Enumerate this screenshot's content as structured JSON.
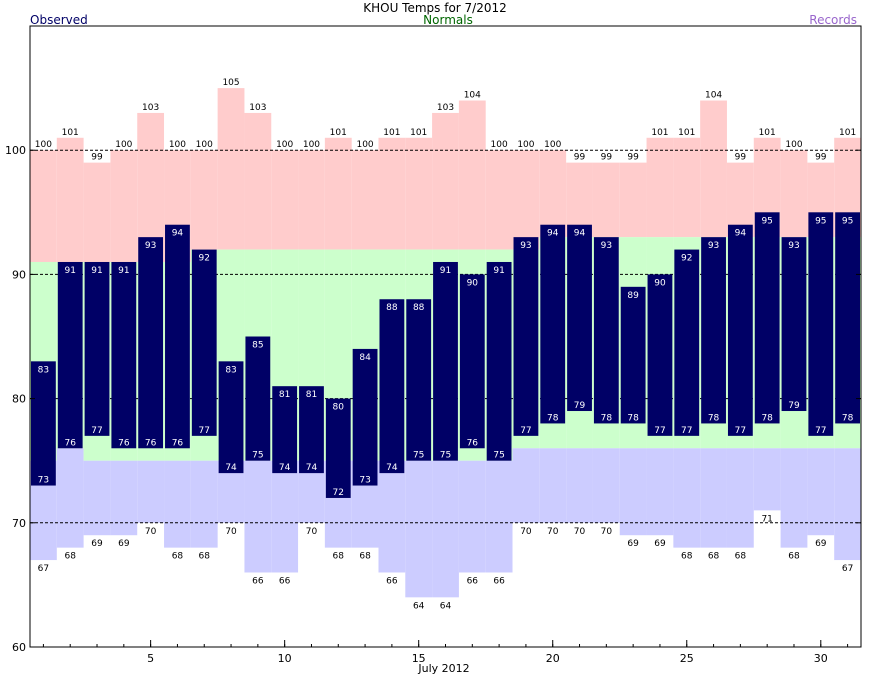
{
  "title": "KHOU Temps for 7/2012",
  "legend": {
    "observed": "Observed",
    "normals": "Normals",
    "records": "Records"
  },
  "colors": {
    "observed_bar": "#000066",
    "record_high_fill": "#ffcccc",
    "normal_fill": "#ccffcc",
    "record_low_fill": "#ccccff",
    "observed_text": "#000066",
    "normals_text": "#006600",
    "records_text": "#9966cc"
  },
  "chart_data": {
    "type": "bar",
    "title": "KHOU Temps for 7/2012",
    "xlabel": "July 2012",
    "ylabel": "",
    "xlim": [
      0.5,
      31.5
    ],
    "ylim": [
      60,
      110
    ],
    "x_ticks": [
      5,
      10,
      15,
      20,
      25,
      30
    ],
    "y_ticks": [
      60,
      70,
      80,
      90,
      100
    ],
    "dashed_gridlines": [
      70,
      80,
      90,
      100
    ],
    "days": [
      1,
      2,
      3,
      4,
      5,
      6,
      7,
      8,
      9,
      10,
      11,
      12,
      13,
      14,
      15,
      16,
      17,
      18,
      19,
      20,
      21,
      22,
      23,
      24,
      25,
      26,
      27,
      28,
      29,
      30,
      31
    ],
    "series": [
      {
        "name": "Observed",
        "kind": "high",
        "values": [
          83,
          91,
          91,
          91,
          93,
          94,
          92,
          83,
          85,
          81,
          81,
          80,
          84,
          88,
          88,
          91,
          90,
          91,
          93,
          94,
          94,
          93,
          89,
          90,
          92,
          93,
          94,
          95,
          93,
          95,
          95
        ]
      },
      {
        "name": "Observed",
        "kind": "low",
        "values": [
          73,
          76,
          77,
          76,
          76,
          76,
          77,
          74,
          75,
          74,
          74,
          72,
          73,
          74,
          75,
          75,
          76,
          75,
          77,
          78,
          79,
          78,
          78,
          77,
          77,
          78,
          77,
          78,
          79,
          77,
          78
        ]
      },
      {
        "name": "Normals",
        "kind": "high",
        "values": [
          91,
          91,
          91,
          91,
          91,
          91,
          92,
          92,
          92,
          92,
          92,
          92,
          92,
          92,
          92,
          92,
          92,
          92,
          92,
          93,
          93,
          93,
          93,
          93,
          93,
          93,
          93,
          93,
          93,
          93,
          93
        ]
      },
      {
        "name": "Normals",
        "kind": "low",
        "values": [
          75,
          76,
          75,
          75,
          75,
          75,
          75,
          75,
          75,
          75,
          75,
          75,
          75,
          75,
          75,
          75,
          75,
          75,
          76,
          76,
          76,
          76,
          76,
          76,
          76,
          76,
          76,
          76,
          76,
          76,
          76
        ]
      },
      {
        "name": "Records",
        "kind": "high",
        "values": [
          100,
          101,
          99,
          100,
          103,
          100,
          100,
          105,
          103,
          100,
          100,
          101,
          100,
          101,
          101,
          103,
          104,
          100,
          100,
          100,
          99,
          99,
          99,
          101,
          101,
          104,
          99,
          101,
          100,
          99,
          101
        ]
      },
      {
        "name": "Records",
        "kind": "low",
        "values": [
          67,
          68,
          69,
          69,
          70,
          68,
          68,
          70,
          66,
          66,
          70,
          68,
          68,
          66,
          64,
          64,
          66,
          66,
          70,
          70,
          70,
          70,
          69,
          69,
          68,
          68,
          68,
          71,
          68,
          69,
          67
        ]
      }
    ]
  }
}
